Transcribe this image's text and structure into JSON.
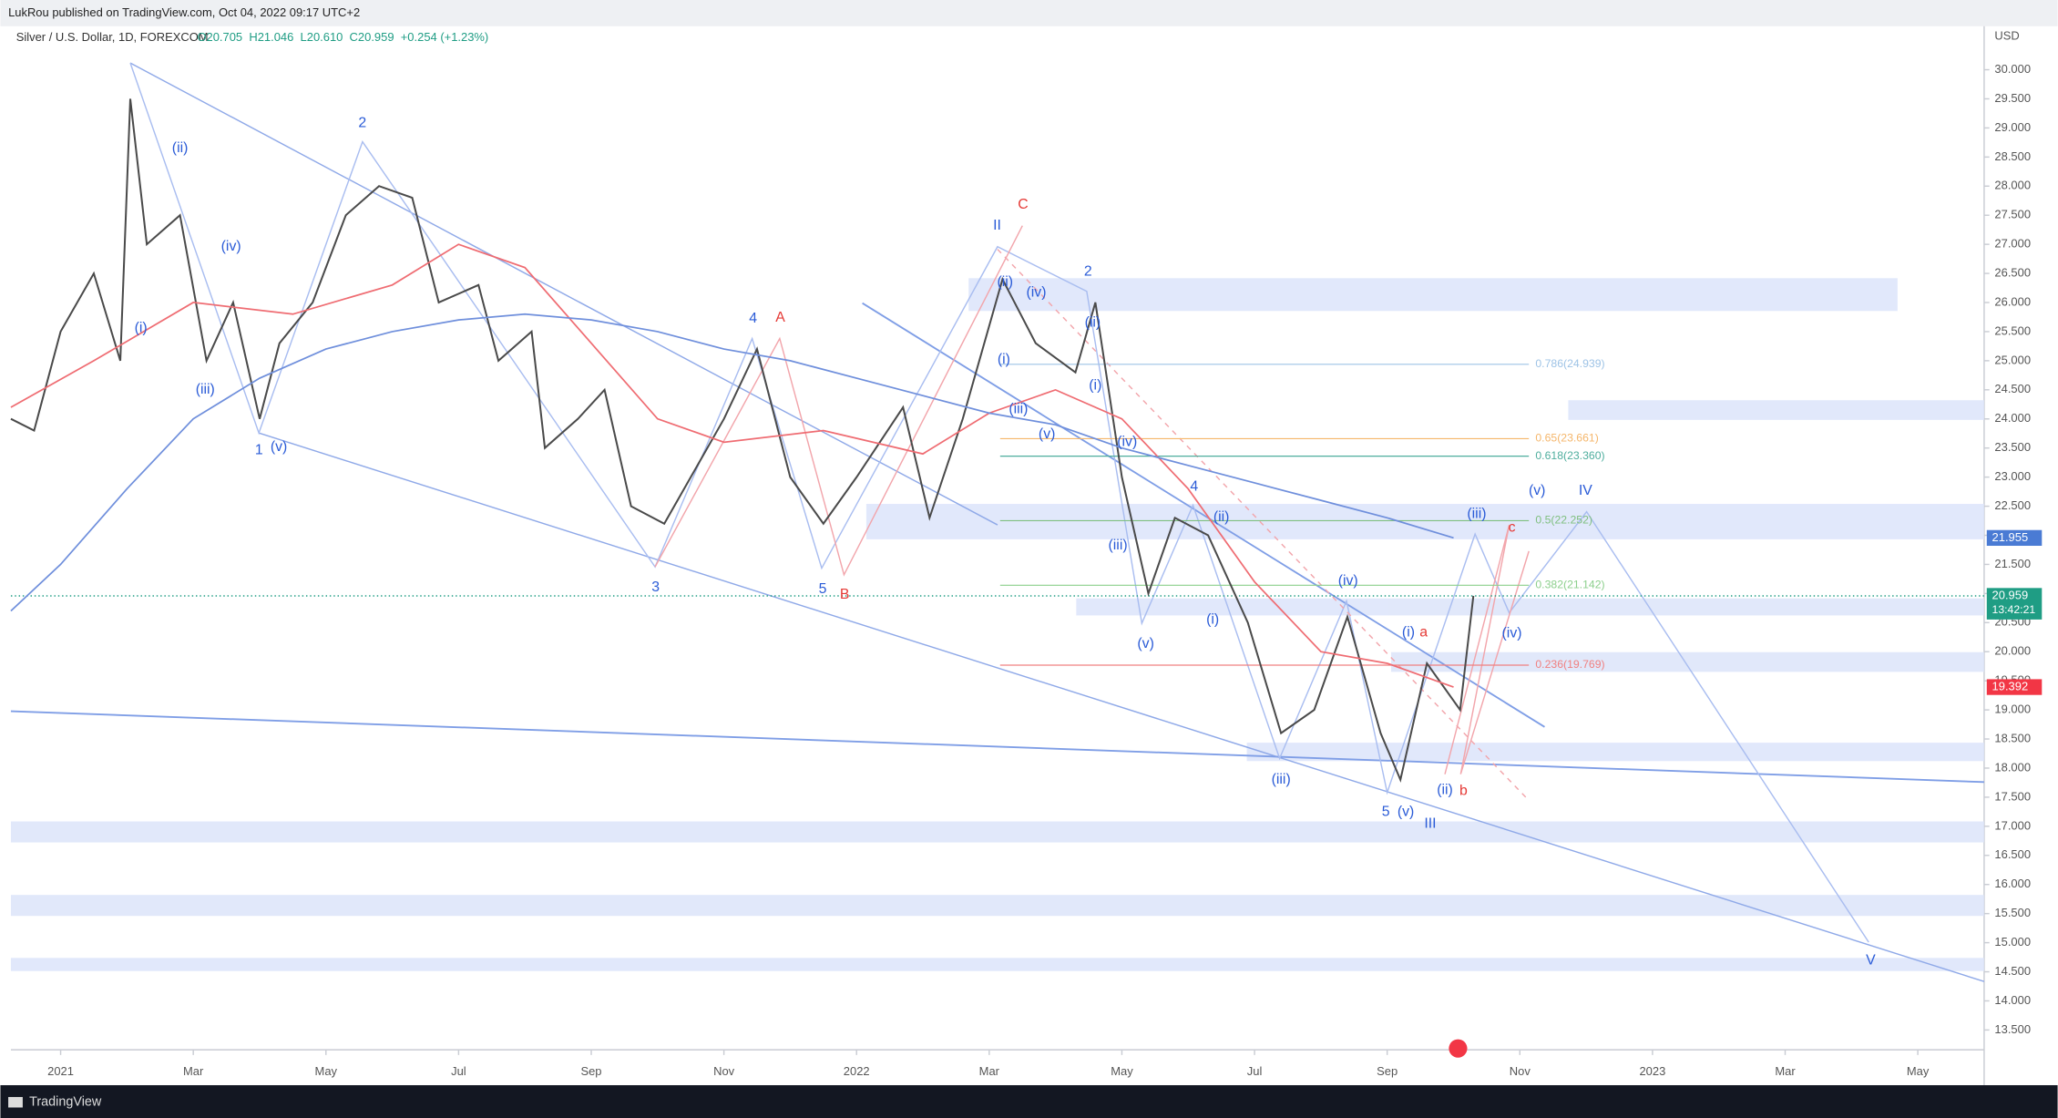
{
  "header": {
    "text": "LukRou published on TradingView.com, Oct 04, 2022 09:17 UTC+2",
    "brand": "TradingView"
  },
  "chart_data": {
    "type": "line",
    "symbol": "Silver / U.S. Dollar, 1D, FOREXCOM",
    "ohlc": [
      "O20.705",
      "H21.046",
      "L20.610",
      "C20.959",
      "+0.254 (+1.23%)"
    ],
    "currency": "USD",
    "xlim": [
      -0.75,
      29.0
    ],
    "ylim": [
      13.16,
      30.86
    ],
    "xticks": [
      {
        "value": 0,
        "label": "2021"
      },
      {
        "value": 2,
        "label": "Mar"
      },
      {
        "value": 4,
        "label": "May"
      },
      {
        "value": 6,
        "label": "Jul"
      },
      {
        "value": 8,
        "label": "Sep"
      },
      {
        "value": 10,
        "label": "Nov"
      },
      {
        "value": 12,
        "label": "2022"
      },
      {
        "value": 14,
        "label": "Mar"
      },
      {
        "value": 16,
        "label": "May"
      },
      {
        "value": 18,
        "label": "Jul"
      },
      {
        "value": 20,
        "label": "Sep"
      },
      {
        "value": 22,
        "label": "Nov"
      },
      {
        "value": 24,
        "label": "2023"
      },
      {
        "value": 26,
        "label": "Mar"
      },
      {
        "value": 28,
        "label": "May"
      }
    ],
    "yticks": [
      {
        "value": 13.5,
        "label": "13.500"
      },
      {
        "value": 14,
        "label": "14.000"
      },
      {
        "value": 14.5,
        "label": "14.500"
      },
      {
        "value": 15,
        "label": "15.000"
      },
      {
        "value": 15.5,
        "label": "15.500"
      },
      {
        "value": 16,
        "label": "16.000"
      },
      {
        "value": 16.5,
        "label": "16.500"
      },
      {
        "value": 17,
        "label": "17.000"
      },
      {
        "value": 17.5,
        "label": "17.500"
      },
      {
        "value": 18,
        "label": "18.000"
      },
      {
        "value": 18.5,
        "label": "18.500"
      },
      {
        "value": 19,
        "label": "19.000"
      },
      {
        "value": 19.5,
        "label": "19.500"
      },
      {
        "value": 20,
        "label": "20.000"
      },
      {
        "value": 20.5,
        "label": "20.500"
      },
      {
        "value": 21,
        "label": "21.000"
      },
      {
        "value": 21.5,
        "label": "21.500"
      },
      {
        "value": 22,
        "label": "22.000"
      },
      {
        "value": 22.5,
        "label": "22.500"
      },
      {
        "value": 23,
        "label": "23.000"
      },
      {
        "value": 23.5,
        "label": "23.500"
      },
      {
        "value": 24,
        "label": "24.000"
      },
      {
        "value": 24.5,
        "label": "24.500"
      },
      {
        "value": 25,
        "label": "25.000"
      },
      {
        "value": 25.5,
        "label": "25.500"
      },
      {
        "value": 26,
        "label": "26.000"
      },
      {
        "value": 26.5,
        "label": "26.500"
      },
      {
        "value": 27,
        "label": "27.000"
      },
      {
        "value": 27.5,
        "label": "27.500"
      },
      {
        "value": 28,
        "label": "28.000"
      },
      {
        "value": 28.5,
        "label": "28.500"
      },
      {
        "value": 29,
        "label": "29.000"
      },
      {
        "value": 29.5,
        "label": "29.500"
      },
      {
        "value": 30,
        "label": "30.000"
      }
    ],
    "series": [
      {
        "color": "#4a4a4a",
        "x": [
          -0.75,
          -0.4,
          0,
          0.5,
          0.9,
          1.05,
          1.3,
          1.8,
          2.2,
          2.6,
          3.0,
          3.3,
          3.8,
          4.3,
          4.8,
          5.3,
          5.7,
          6.3,
          6.6,
          7.1,
          7.3,
          7.8,
          8.2,
          8.6,
          9.1,
          9.5,
          10.0,
          10.5,
          11.0,
          11.5,
          12.0,
          12.7,
          13.1,
          13.6,
          14.2,
          14.7,
          15.3,
          15.6,
          16.0,
          16.4,
          16.8,
          17.3,
          17.9,
          18.4,
          18.9,
          19.4,
          19.9,
          20.2,
          20.6,
          21.1,
          21.3
        ],
        "values": [
          24.0,
          23.8,
          25.5,
          26.5,
          25.0,
          29.5,
          27.0,
          27.5,
          25.0,
          26.0,
          24.0,
          25.3,
          26.0,
          27.5,
          28.0,
          27.8,
          26.0,
          26.3,
          25.0,
          25.5,
          23.5,
          24.0,
          24.5,
          22.5,
          22.2,
          23.0,
          24.0,
          25.2,
          23.0,
          22.2,
          23.0,
          24.2,
          22.3,
          24.0,
          26.4,
          25.3,
          24.8,
          26.0,
          23.0,
          21.0,
          22.3,
          22.0,
          20.5,
          18.6,
          19.0,
          20.6,
          18.6,
          17.8,
          19.8,
          19.0,
          20.959
        ]
      },
      {
        "color": "#ef6c72",
        "x": [
          -0.75,
          0.5,
          2,
          3.5,
          5,
          6,
          7,
          8,
          9,
          10,
          11.5,
          13,
          14,
          15,
          16,
          17,
          18,
          19,
          20,
          21
        ],
        "values": [
          24.2,
          25.0,
          26.0,
          25.8,
          26.3,
          27.0,
          26.6,
          25.3,
          24.0,
          23.6,
          23.8,
          23.4,
          24.1,
          24.5,
          24.0,
          22.8,
          21.2,
          20.0,
          19.8,
          19.392
        ]
      },
      {
        "color": "#6f8fdc",
        "x": [
          -0.75,
          0,
          1,
          2,
          3,
          4,
          5,
          6,
          7,
          8,
          9,
          10,
          11,
          12,
          13,
          14,
          15,
          16,
          17,
          18,
          19,
          20,
          21
        ],
        "values": [
          20.7,
          21.5,
          22.8,
          24.0,
          24.7,
          25.2,
          25.5,
          25.7,
          25.8,
          25.7,
          25.5,
          25.2,
          25.0,
          24.7,
          24.4,
          24.1,
          23.9,
          23.5,
          23.2,
          22.9,
          22.6,
          22.3,
          21.955
        ]
      }
    ],
    "price_tags": [
      {
        "value": 21.955,
        "color": "#4a7bd4"
      },
      {
        "value": 20.959,
        "color": "#1f9d84",
        "sub": "13:42:21"
      },
      {
        "value": 19.392,
        "color": "#f23645"
      }
    ],
    "fib_levels": [
      {
        "value": 24.939,
        "label": "0.786(24.939)",
        "color": "#9ec3e6"
      },
      {
        "value": 23.661,
        "label": "0.65(23.661)",
        "color": "#f5b66b"
      },
      {
        "value": 23.36,
        "label": "0.618(23.360)",
        "color": "#4fae9e"
      },
      {
        "value": 22.252,
        "label": "0.5(22.252)",
        "color": "#7fbf7f"
      },
      {
        "value": 21.142,
        "label": "0.382(21.142)",
        "color": "#8ccf8c"
      },
      {
        "value": 19.769,
        "label": "0.236(19.769)",
        "color": "#f08080"
      }
    ],
    "annotations": [
      {
        "text": "(i)",
        "x": 1.21,
        "y": 25.56,
        "color": "#2a5bd7"
      },
      {
        "text": "(ii)",
        "x": 1.8,
        "y": 28.65,
        "color": "#2a5bd7"
      },
      {
        "text": "(iii)",
        "x": 2.18,
        "y": 24.5,
        "color": "#2a5bd7"
      },
      {
        "text": "(iv)",
        "x": 2.57,
        "y": 26.96,
        "color": "#2a5bd7"
      },
      {
        "text": "1",
        "x": 2.99,
        "y": 23.46,
        "color": "#2a5bd7"
      },
      {
        "text": "(v)",
        "x": 3.29,
        "y": 23.51,
        "color": "#2a5bd7"
      },
      {
        "text": "2",
        "x": 4.55,
        "y": 29.08,
        "color": "#2a5bd7"
      },
      {
        "text": "3",
        "x": 8.97,
        "y": 21.1,
        "color": "#2a5bd7"
      },
      {
        "text": "4",
        "x": 10.44,
        "y": 25.72,
        "color": "#2a5bd7"
      },
      {
        "text": "5",
        "x": 11.49,
        "y": 21.07,
        "color": "#2a5bd7"
      },
      {
        "text": "II",
        "x": 14.12,
        "y": 27.32,
        "color": "#2a5bd7"
      },
      {
        "text": "(ii)",
        "x": 14.24,
        "y": 26.35,
        "color": "#2a5bd7"
      },
      {
        "text": "(iv)",
        "x": 14.71,
        "y": 26.17,
        "color": "#2a5bd7"
      },
      {
        "text": "(i)",
        "x": 14.22,
        "y": 25.02,
        "color": "#2a5bd7"
      },
      {
        "text": "(iii)",
        "x": 14.44,
        "y": 24.16,
        "color": "#2a5bd7"
      },
      {
        "text": "(v)",
        "x": 14.87,
        "y": 23.73,
        "color": "#2a5bd7"
      },
      {
        "text": "2",
        "x": 15.49,
        "y": 26.53,
        "color": "#2a5bd7"
      },
      {
        "text": "(ii)",
        "x": 15.56,
        "y": 25.65,
        "color": "#2a5bd7"
      },
      {
        "text": "(i)",
        "x": 15.6,
        "y": 24.57,
        "color": "#2a5bd7"
      },
      {
        "text": "(iv)",
        "x": 16.08,
        "y": 23.6,
        "color": "#2a5bd7"
      },
      {
        "text": "(iii)",
        "x": 15.94,
        "y": 21.82,
        "color": "#2a5bd7"
      },
      {
        "text": "(v)",
        "x": 16.36,
        "y": 20.13,
        "color": "#2a5bd7"
      },
      {
        "text": "4",
        "x": 17.09,
        "y": 22.83,
        "color": "#2a5bd7"
      },
      {
        "text": "(ii)",
        "x": 17.5,
        "y": 22.31,
        "color": "#2a5bd7"
      },
      {
        "text": "(i)",
        "x": 17.37,
        "y": 20.55,
        "color": "#2a5bd7"
      },
      {
        "text": "(iv)",
        "x": 19.41,
        "y": 21.21,
        "color": "#2a5bd7"
      },
      {
        "text": "(iii)",
        "x": 18.4,
        "y": 17.8,
        "color": "#2a5bd7"
      },
      {
        "text": "5",
        "x": 19.98,
        "y": 17.24,
        "color": "#2a5bd7"
      },
      {
        "text": "(v)",
        "x": 20.28,
        "y": 17.24,
        "color": "#2a5bd7"
      },
      {
        "text": "III",
        "x": 20.65,
        "y": 17.04,
        "color": "#2a5bd7"
      },
      {
        "text": "(i)",
        "x": 20.32,
        "y": 20.33,
        "color": "#2a5bd7"
      },
      {
        "text": "(ii)",
        "x": 20.87,
        "y": 17.62,
        "color": "#2a5bd7"
      },
      {
        "text": "(iii)",
        "x": 21.35,
        "y": 22.36,
        "color": "#2a5bd7"
      },
      {
        "text": "(iv)",
        "x": 21.88,
        "y": 20.31,
        "color": "#2a5bd7"
      },
      {
        "text": "(v)",
        "x": 22.26,
        "y": 22.76,
        "color": "#2a5bd7"
      },
      {
        "text": "IV",
        "x": 22.99,
        "y": 22.76,
        "color": "#2a5bd7"
      },
      {
        "text": "V",
        "x": 27.29,
        "y": 14.69,
        "color": "#2a5bd7"
      },
      {
        "text": "C",
        "x": 14.51,
        "y": 27.68,
        "color": "#e53935"
      },
      {
        "text": "A",
        "x": 10.85,
        "y": 25.74,
        "color": "#e53935"
      },
      {
        "text": "B",
        "x": 11.82,
        "y": 20.98,
        "color": "#e53935"
      },
      {
        "text": "a",
        "x": 20.55,
        "y": 20.33,
        "color": "#e53935"
      },
      {
        "text": "b",
        "x": 21.15,
        "y": 17.6,
        "color": "#e53935"
      },
      {
        "text": "c",
        "x": 21.88,
        "y": 22.13,
        "color": "#e53935"
      }
    ]
  }
}
